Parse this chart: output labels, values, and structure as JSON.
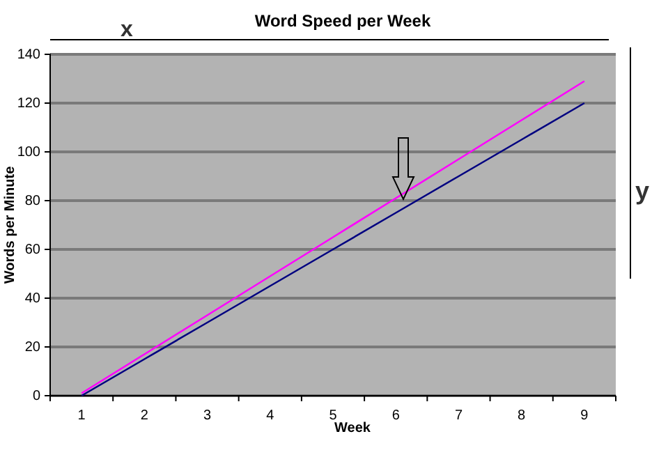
{
  "chart_data": {
    "type": "line",
    "title": "Word Speed per Week",
    "xlabel": "Week",
    "ylabel": "Words per Minute",
    "categories": [
      "1",
      "2",
      "3",
      "4",
      "5",
      "6",
      "7",
      "8",
      "9"
    ],
    "series": [
      {
        "color": "#ff00ff",
        "values": [
          1,
          17,
          33,
          49,
          65,
          81,
          97,
          113,
          129
        ]
      },
      {
        "color": "#000080",
        "values": [
          0,
          15,
          30,
          45,
          60,
          75,
          90,
          105,
          120
        ]
      }
    ],
    "ylim": [
      0,
      140
    ],
    "yticks": [
      0,
      20,
      40,
      60,
      80,
      100,
      120,
      140
    ],
    "grid": "y",
    "marker": "none",
    "line_style": "solid",
    "annotations": [
      "x",
      "y"
    ]
  }
}
